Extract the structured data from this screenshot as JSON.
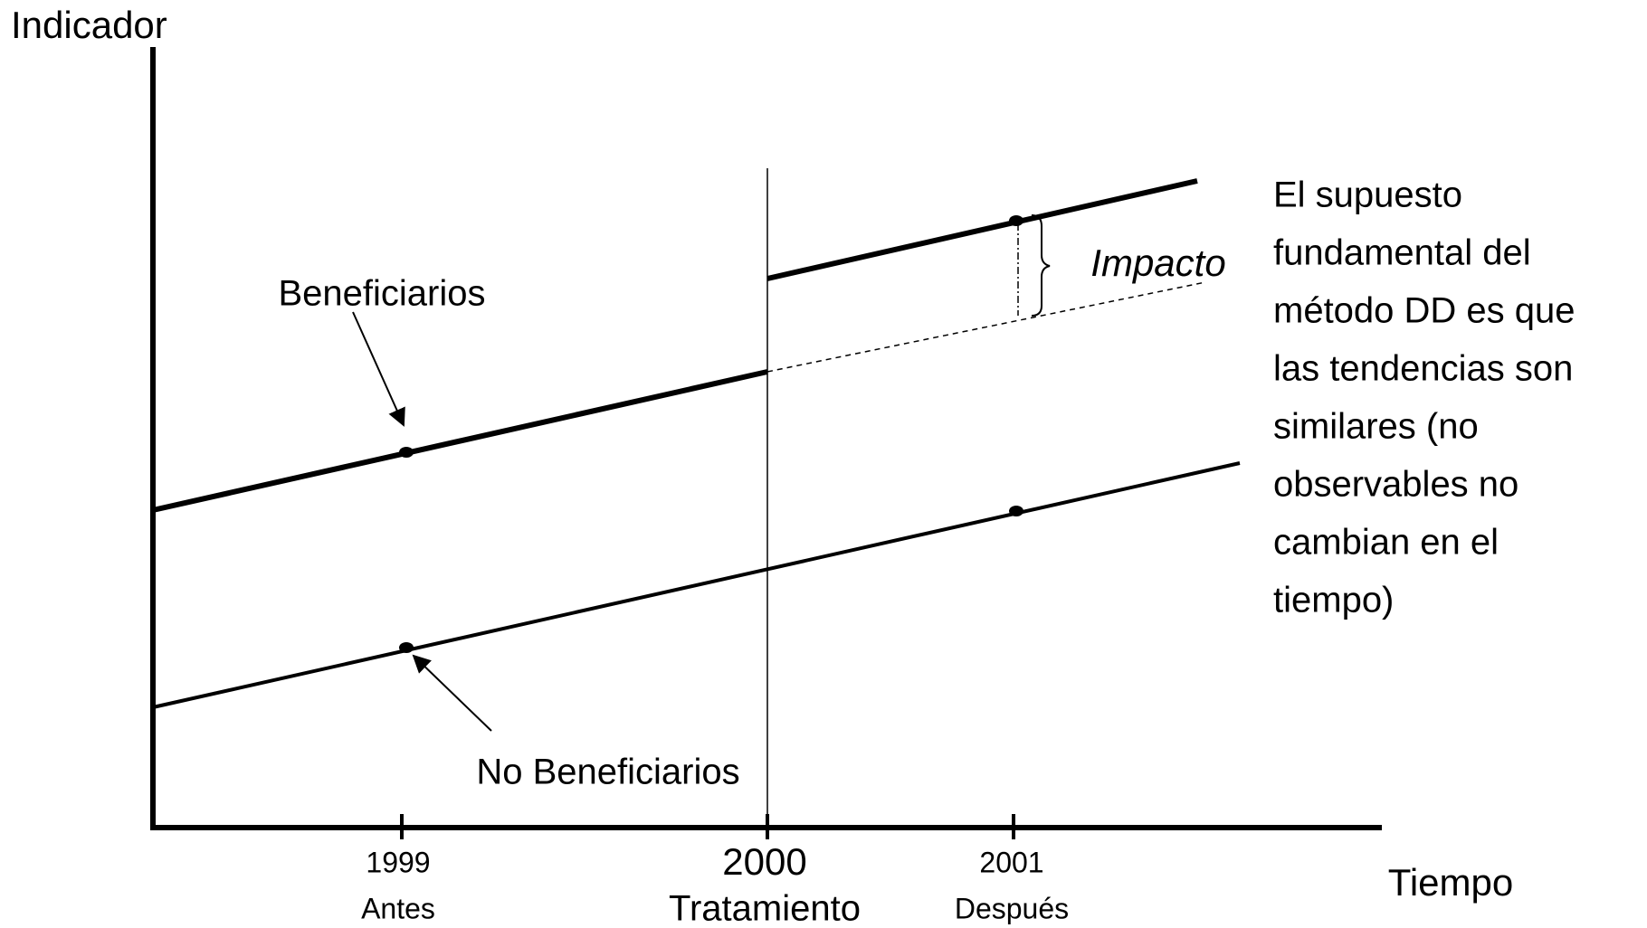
{
  "axes": {
    "y_label": "Indicador",
    "x_label": "Tiempo"
  },
  "ticks": [
    {
      "year": "1999",
      "phase": "Antes"
    },
    {
      "year": "2000",
      "phase": "Tratamiento"
    },
    {
      "year": "2001",
      "phase": "Después"
    }
  ],
  "series_labels": {
    "treated": "Beneficiarios",
    "control": "No Beneficiarios"
  },
  "impact_label": "Impacto",
  "note": [
    "El supuesto",
    "fundamental del",
    "método DD es que",
    "las tendencias son",
    "similares (no",
    "observables no",
    "cambian en el",
    "tiempo)"
  ]
}
